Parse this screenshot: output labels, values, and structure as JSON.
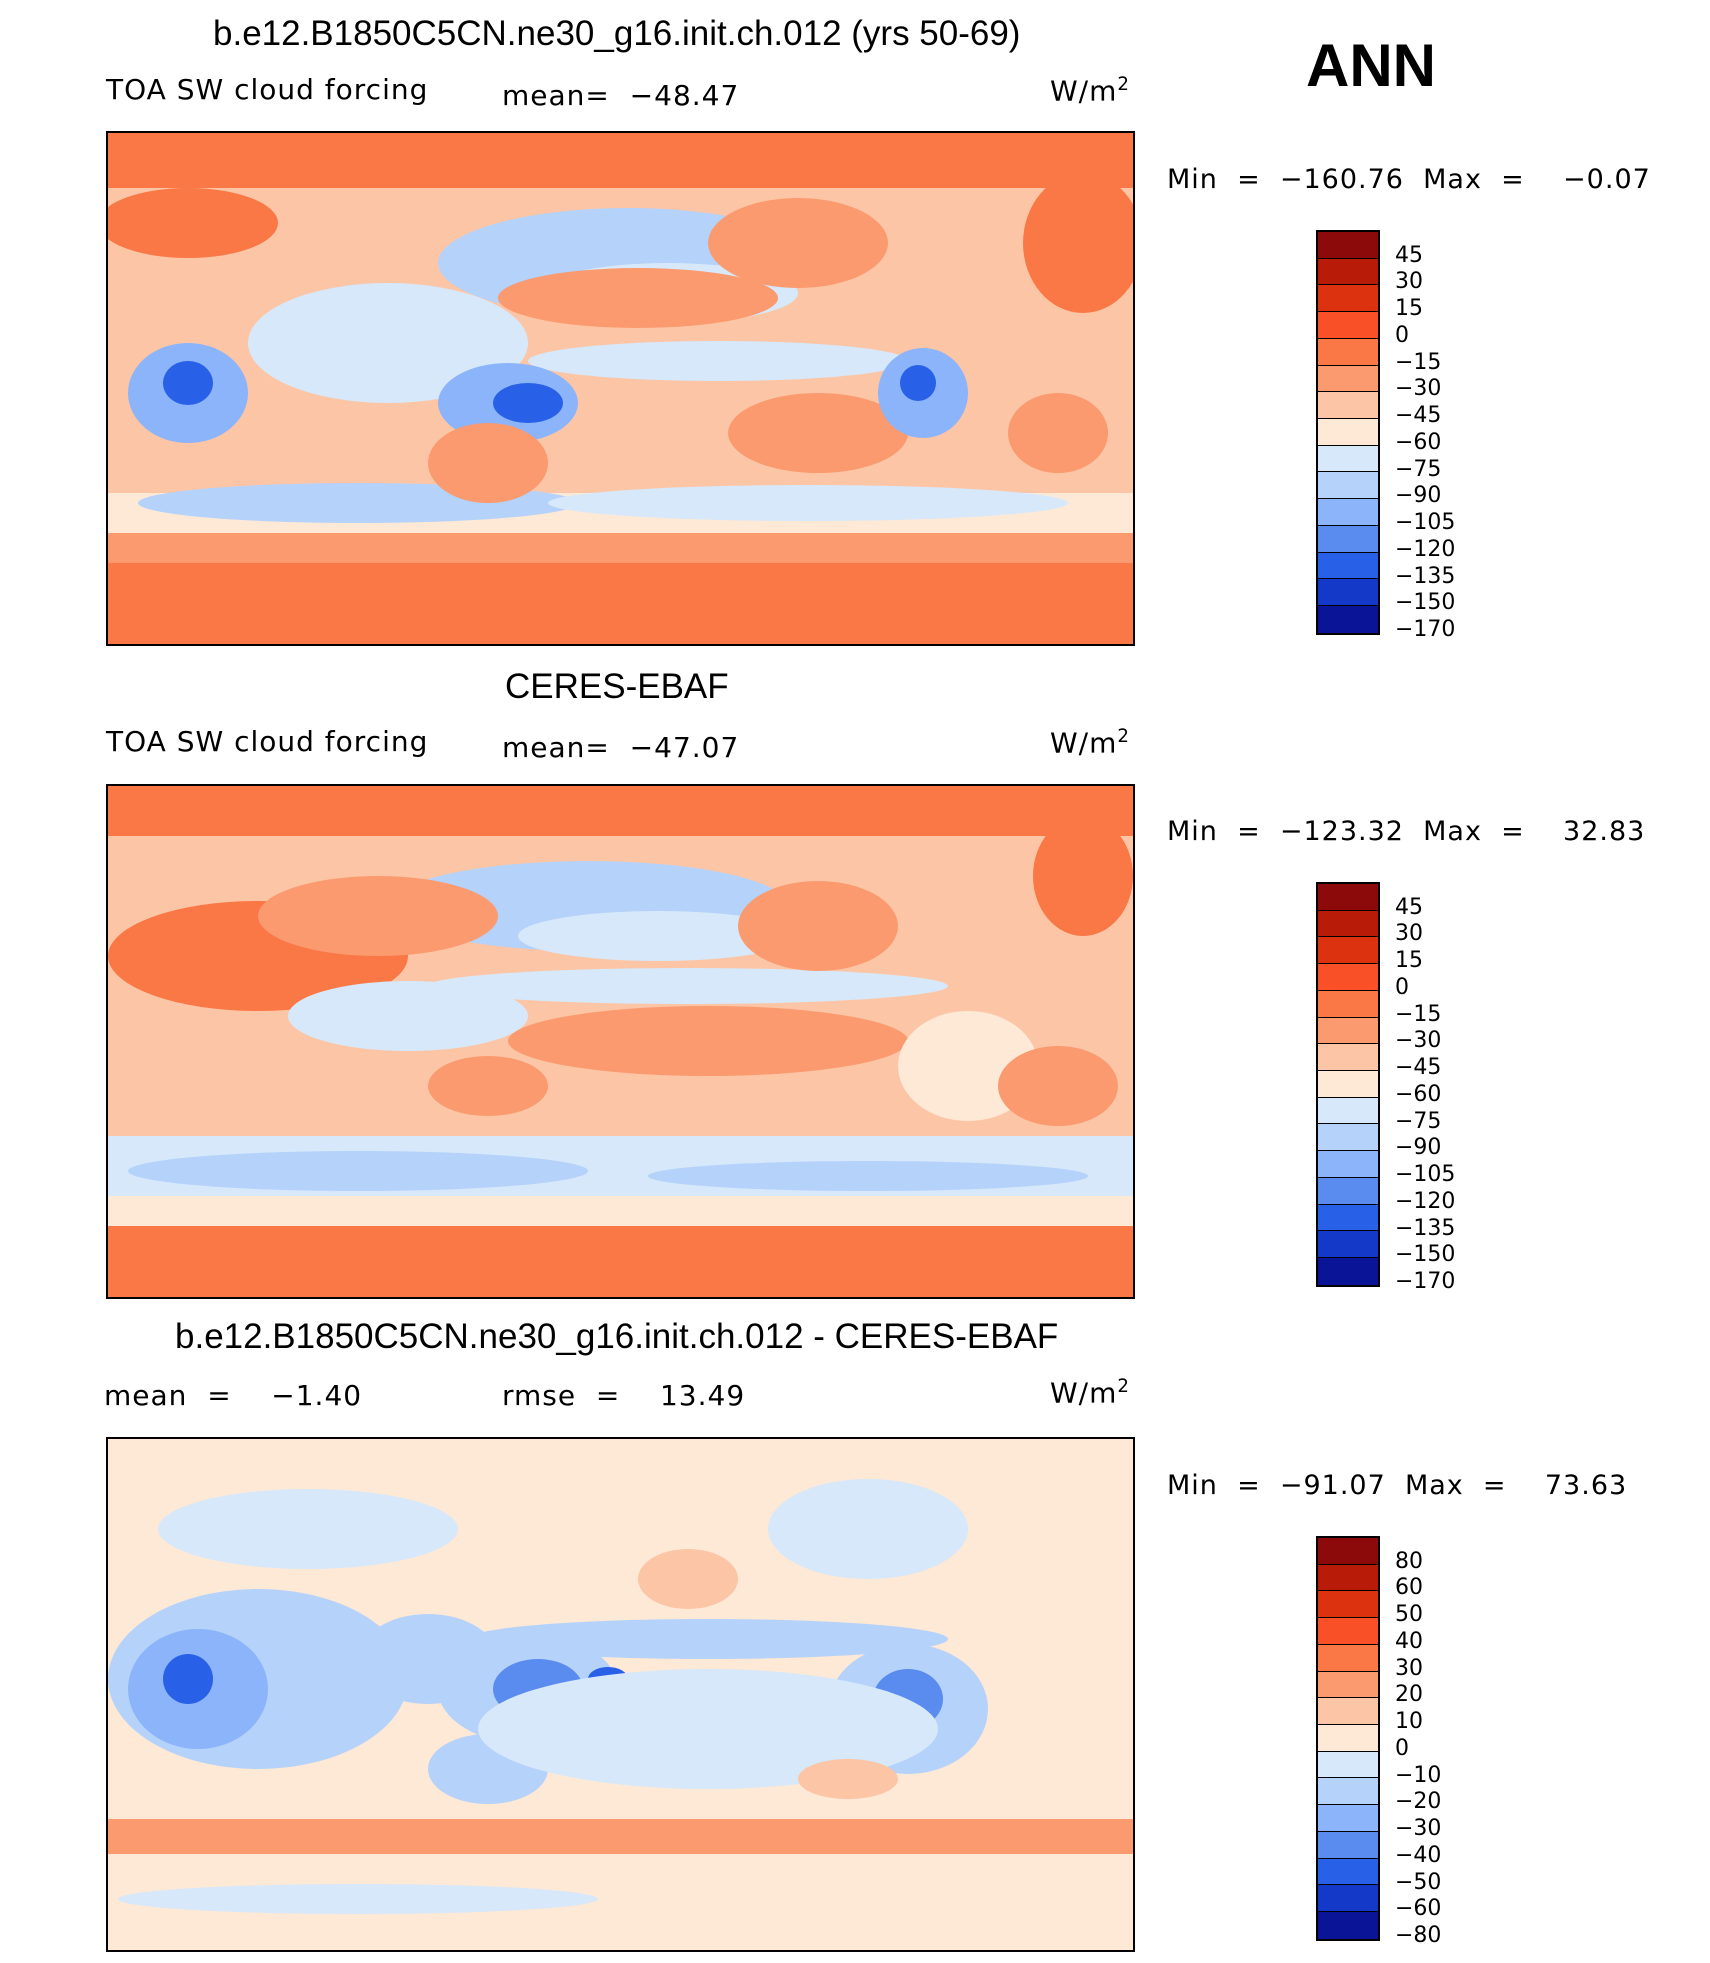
{
  "season_label": "ANN",
  "panels": [
    {
      "title": "b.e12.B1850C5CN.ne30_g16.init.ch.012 (yrs 50-69)",
      "left_label": "TOA SW cloud forcing",
      "center_label": "mean=  −48.47",
      "units_base": "W/m",
      "units_exp": "2",
      "minmax": "Min  =  −160.76  Max  =    −0.07",
      "colorbar": [
        "45",
        "30",
        "15",
        "0",
        "−15",
        "−30",
        "−45",
        "−60",
        "−75",
        "−90",
        "−105",
        "−120",
        "−135",
        "−150",
        "−170"
      ]
    },
    {
      "title": "CERES-EBAF",
      "left_label": "TOA SW cloud forcing",
      "center_label": "mean=  −47.07",
      "units_base": "W/m",
      "units_exp": "2",
      "minmax": "Min  =  −123.32  Max  =    32.83",
      "colorbar": [
        "45",
        "30",
        "15",
        "0",
        "−15",
        "−30",
        "−45",
        "−60",
        "−75",
        "−90",
        "−105",
        "−120",
        "−135",
        "−150",
        "−170"
      ]
    },
    {
      "title": "b.e12.B1850C5CN.ne30_g16.init.ch.012 - CERES-EBAF",
      "left_label": "mean  =    −1.40",
      "center_label": "rmse  =    13.49",
      "units_base": "W/m",
      "units_exp": "2",
      "minmax": "Min  =  −91.07  Max  =    73.63",
      "colorbar": [
        "80",
        "60",
        "50",
        "40",
        "30",
        "20",
        "10",
        "0",
        "−10",
        "−20",
        "−30",
        "−40",
        "−50",
        "−60",
        "−80"
      ]
    }
  ],
  "colors": {
    "colorbar_palette": [
      "#8c0a0a",
      "#b81c08",
      "#dc3210",
      "#fa5028",
      "#fa7846",
      "#fa9a6e",
      "#fcc6a6",
      "#fee8d6",
      "#d6e8fa",
      "#b4d2fa",
      "#8cb4fa",
      "#5a8cf0",
      "#2860e8",
      "#1438c8",
      "#0a1496"
    ]
  }
}
